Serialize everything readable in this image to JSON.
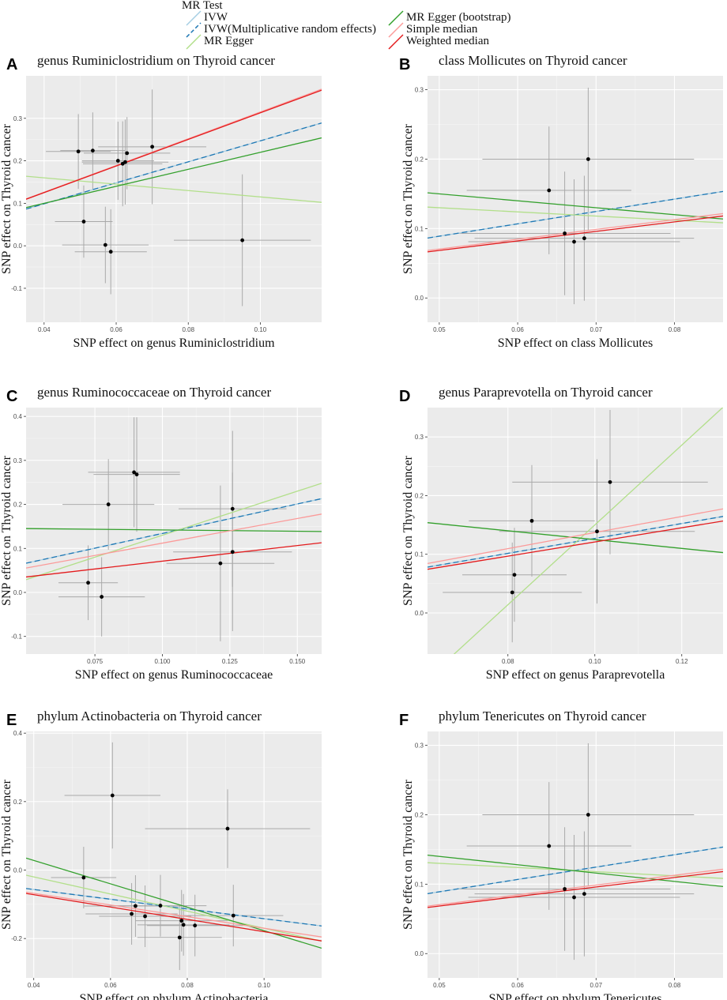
{
  "legend": {
    "title": "MR Test",
    "entries": [
      {
        "label": "IVW",
        "color": "#a6cee3",
        "dash": false
      },
      {
        "label": "IVW(Multiplicative random effects)",
        "color": "#1f78b4",
        "dash": true
      },
      {
        "label": "MR Egger",
        "color": "#b2df8a",
        "dash": false
      },
      {
        "label": "MR Egger (bootstrap)",
        "color": "#33a02c",
        "dash": false
      },
      {
        "label": "Simple median",
        "color": "#fb9a99",
        "dash": false
      },
      {
        "label": "Weighted median",
        "color": "#e31a1c",
        "dash": false
      }
    ]
  },
  "chart_data": [
    {
      "panel": "A",
      "type": "scatter",
      "title": "genus  Ruminiclostridium on Thyroid cancer",
      "xlabel": "SNP effect on genus  Ruminiclostridium",
      "ylabel": "SNP effect on Thyroid cancer",
      "xlim": [
        0.035,
        0.117
      ],
      "ylim": [
        -0.18,
        0.4
      ],
      "xticks": [
        0.04,
        0.06,
        0.08,
        0.1
      ],
      "xtick_labels": [
        "0.04",
        "0.06",
        "0.08",
        "0.10"
      ],
      "yticks": [
        -0.1,
        0.0,
        0.1,
        0.2,
        0.3
      ],
      "ytick_labels": [
        "-0.1",
        "0.0",
        "0.1",
        "0.2",
        "0.3"
      ],
      "points": [
        {
          "x": 0.0495,
          "y": 0.222,
          "xse": 0.009,
          "yse": 0.088
        },
        {
          "x": 0.0535,
          "y": 0.224,
          "xse": 0.009,
          "yse": 0.09
        },
        {
          "x": 0.0605,
          "y": 0.2,
          "xse": 0.01,
          "yse": 0.092
        },
        {
          "x": 0.0618,
          "y": 0.193,
          "xse": 0.011,
          "yse": 0.1
        },
        {
          "x": 0.0625,
          "y": 0.197,
          "xse": 0.012,
          "yse": 0.1
        },
        {
          "x": 0.063,
          "y": 0.218,
          "xse": 0.012,
          "yse": 0.085
        },
        {
          "x": 0.07,
          "y": 0.233,
          "xse": 0.015,
          "yse": 0.135
        },
        {
          "x": 0.051,
          "y": 0.057,
          "xse": 0.008,
          "yse": 0.085
        },
        {
          "x": 0.057,
          "y": 0.002,
          "xse": 0.012,
          "yse": 0.09
        },
        {
          "x": 0.0585,
          "y": -0.014,
          "xse": 0.01,
          "yse": 0.1
        },
        {
          "x": 0.095,
          "y": 0.013,
          "xse": 0.019,
          "yse": 0.155
        }
      ],
      "lines": [
        {
          "method": "IVW",
          "intercept": 0,
          "slope": 2.47
        },
        {
          "method": "IVW(Multiplicative random effects)",
          "intercept": 0,
          "slope": 2.47
        },
        {
          "method": "MR Egger",
          "intercept": 0.19,
          "slope": -0.75
        },
        {
          "method": "MR Egger (bootstrap)",
          "intercept": 0.02,
          "slope": 2.0
        },
        {
          "method": "Simple median",
          "intercept": 0.0,
          "slope": 3.15
        },
        {
          "method": "Weighted median",
          "intercept": 0.0,
          "slope": 3.13
        }
      ]
    },
    {
      "panel": "B",
      "type": "scatter",
      "title": "class Mollicutes on Thyroid cancer",
      "xlabel": "SNP effect on class Mollicutes",
      "ylabel": "SNP effect on Thyroid cancer",
      "xlim": [
        0.0485,
        0.0862
      ],
      "ylim": [
        -0.035,
        0.32
      ],
      "xticks": [
        0.05,
        0.06,
        0.07,
        0.08
      ],
      "xtick_labels": [
        "0.05",
        "0.06",
        "0.07",
        "0.08"
      ],
      "yticks": [
        0.0,
        0.1,
        0.2,
        0.3
      ],
      "ytick_labels": [
        "0.0",
        "0.1",
        "0.2",
        "0.3"
      ],
      "points": [
        {
          "x": 0.064,
          "y": 0.155,
          "xse": 0.0105,
          "yse": 0.092
        },
        {
          "x": 0.069,
          "y": 0.2,
          "xse": 0.0135,
          "yse": 0.103
        },
        {
          "x": 0.066,
          "y": 0.093,
          "xse": 0.0135,
          "yse": 0.089
        },
        {
          "x": 0.0672,
          "y": 0.081,
          "xse": 0.0135,
          "yse": 0.09
        },
        {
          "x": 0.0685,
          "y": 0.086,
          "xse": 0.014,
          "yse": 0.09
        }
      ],
      "lines": [
        {
          "method": "IVW",
          "intercept": 0,
          "slope": 1.78
        },
        {
          "method": "IVW(Multiplicative random effects)",
          "intercept": 0,
          "slope": 1.78
        },
        {
          "method": "MR Egger",
          "intercept": 0.16,
          "slope": -0.6
        },
        {
          "method": "MR Egger (bootstrap)",
          "intercept": 0.2,
          "slope": -1.0
        },
        {
          "method": "Simple median",
          "intercept": 0,
          "slope": 1.41
        },
        {
          "method": "Weighted median",
          "intercept": 0,
          "slope": 1.37
        }
      ]
    },
    {
      "panel": "C",
      "type": "scatter",
      "title": "genus Ruminococcaceae  on Thyroid cancer",
      "xlabel": "SNP effect on genus Ruminococcaceae",
      "ylabel": "SNP effect on Thyroid cancer",
      "xlim": [
        0.0495,
        0.159
      ],
      "ylim": [
        -0.14,
        0.42
      ],
      "xticks": [
        0.075,
        0.1,
        0.125,
        0.15
      ],
      "xtick_labels": [
        "0.075",
        "0.100",
        "0.125",
        "0.150"
      ],
      "yticks": [
        -0.1,
        0.0,
        0.1,
        0.2,
        0.3,
        0.4
      ],
      "ytick_labels": [
        "-0.1",
        "0.0",
        "0.1",
        "0.2",
        "0.3",
        "0.4"
      ],
      "points": [
        {
          "x": 0.0895,
          "y": 0.273,
          "xse": 0.017,
          "yse": 0.125
        },
        {
          "x": 0.0905,
          "y": 0.268,
          "xse": 0.016,
          "yse": 0.13
        },
        {
          "x": 0.08,
          "y": 0.2,
          "xse": 0.017,
          "yse": 0.103
        },
        {
          "x": 0.126,
          "y": 0.19,
          "xse": 0.02,
          "yse": 0.177
        },
        {
          "x": 0.126,
          "y": 0.092,
          "xse": 0.022,
          "yse": 0.18
        },
        {
          "x": 0.1215,
          "y": 0.066,
          "xse": 0.02,
          "yse": 0.177
        },
        {
          "x": 0.0725,
          "y": 0.022,
          "xse": 0.011,
          "yse": 0.085
        },
        {
          "x": 0.0775,
          "y": -0.01,
          "xse": 0.016,
          "yse": 0.09
        }
      ],
      "lines": [
        {
          "method": "IVW",
          "intercept": 0,
          "slope": 1.34
        },
        {
          "method": "IVW(Multiplicative random effects)",
          "intercept": 0,
          "slope": 1.34
        },
        {
          "method": "MR Egger",
          "intercept": -0.07,
          "slope": 2.0
        },
        {
          "method": "MR Egger (bootstrap)",
          "intercept": 0.148,
          "slope": -0.06
        },
        {
          "method": "Simple median",
          "intercept": 0,
          "slope": 1.12
        },
        {
          "method": "Weighted median",
          "intercept": 0,
          "slope": 0.71
        }
      ]
    },
    {
      "panel": "D",
      "type": "scatter",
      "title": "genus Paraprevotella on Thyroid cancer",
      "xlabel": "SNP effect on genus Paraprevotella",
      "ylabel": "SNP effect on Thyroid cancer",
      "xlim": [
        0.0615,
        0.1295
      ],
      "ylim": [
        -0.07,
        0.35
      ],
      "xticks": [
        0.08,
        0.1,
        0.12
      ],
      "xtick_labels": [
        "0.08",
        "0.10",
        "0.12"
      ],
      "yticks": [
        0.0,
        0.1,
        0.2,
        0.3
      ],
      "ytick_labels": [
        "0.0",
        "0.1",
        "0.2",
        "0.3"
      ],
      "points": [
        {
          "x": 0.0855,
          "y": 0.157,
          "xse": 0.0145,
          "yse": 0.095
        },
        {
          "x": 0.1035,
          "y": 0.223,
          "xse": 0.0225,
          "yse": 0.123
        },
        {
          "x": 0.1005,
          "y": 0.139,
          "xse": 0.0225,
          "yse": 0.123
        },
        {
          "x": 0.0815,
          "y": 0.065,
          "xse": 0.012,
          "yse": 0.08
        },
        {
          "x": 0.081,
          "y": 0.035,
          "xse": 0.016,
          "yse": 0.085
        }
      ],
      "lines": [
        {
          "method": "IVW",
          "intercept": 0,
          "slope": 1.27
        },
        {
          "method": "IVW(Multiplicative random effects)",
          "intercept": 0,
          "slope": 1.27
        },
        {
          "method": "MR Egger",
          "intercept": -0.53,
          "slope": 6.8
        },
        {
          "method": "MR Egger (bootstrap)",
          "intercept": 0.2,
          "slope": -0.75
        },
        {
          "method": "Simple median",
          "intercept": 0,
          "slope": 1.37
        },
        {
          "method": "Weighted median",
          "intercept": 0,
          "slope": 1.21
        }
      ]
    },
    {
      "panel": "E",
      "type": "scatter",
      "title": "phylum Actinobacteria on Thyroid cancer",
      "xlabel": "SNP effect on phylum Actinobacteria",
      "ylabel": "SNP effect on Thyroid cancer",
      "xlim": [
        0.038,
        0.115
      ],
      "ylim": [
        -0.315,
        0.405
      ],
      "xticks": [
        0.04,
        0.06,
        0.08,
        0.1
      ],
      "xtick_labels": [
        "0.04",
        "0.06",
        "0.08",
        "0.10"
      ],
      "yticks": [
        -0.2,
        0.0,
        0.2,
        0.4
      ],
      "ytick_labels": [
        "-0.2",
        "0.0",
        "0.2",
        "0.4"
      ],
      "points": [
        {
          "x": 0.0605,
          "y": 0.218,
          "xse": 0.0125,
          "yse": 0.155
        },
        {
          "x": 0.0905,
          "y": 0.121,
          "xse": 0.0215,
          "yse": 0.115
        },
        {
          "x": 0.053,
          "y": -0.022,
          "xse": 0.0085,
          "yse": 0.09
        },
        {
          "x": 0.0665,
          "y": -0.105,
          "xse": 0.0135,
          "yse": 0.09
        },
        {
          "x": 0.0655,
          "y": -0.128,
          "xse": 0.012,
          "yse": 0.09
        },
        {
          "x": 0.069,
          "y": -0.135,
          "xse": 0.012,
          "yse": 0.09
        },
        {
          "x": 0.073,
          "y": -0.104,
          "xse": 0.012,
          "yse": 0.09
        },
        {
          "x": 0.0785,
          "y": -0.148,
          "xse": 0.012,
          "yse": 0.09
        },
        {
          "x": 0.079,
          "y": -0.16,
          "xse": 0.012,
          "yse": 0.09
        },
        {
          "x": 0.082,
          "y": -0.162,
          "xse": 0.0125,
          "yse": 0.09
        },
        {
          "x": 0.078,
          "y": -0.197,
          "xse": 0.011,
          "yse": 0.095
        },
        {
          "x": 0.092,
          "y": -0.133,
          "xse": 0.013,
          "yse": 0.09
        }
      ],
      "lines": [
        {
          "method": "IVW",
          "intercept": 0,
          "slope": -1.42
        },
        {
          "method": "IVW(Multiplicative random effects)",
          "intercept": 0,
          "slope": -1.42
        },
        {
          "method": "MR Egger",
          "intercept": 0.08,
          "slope": -2.5
        },
        {
          "method": "MR Egger (bootstrap)",
          "intercept": 0.165,
          "slope": -3.42
        },
        {
          "method": "Simple median",
          "intercept": 0,
          "slope": -1.7
        },
        {
          "method": "Weighted median",
          "intercept": 0,
          "slope": -1.8
        }
      ]
    },
    {
      "panel": "F",
      "type": "scatter",
      "title": "phylum Tenericutes on Thyroid cancer",
      "xlabel": "SNP effect on phylum Tenericutes",
      "ylabel": "SNP effect on Thyroid cancer",
      "xlim": [
        0.0485,
        0.0862
      ],
      "ylim": [
        -0.035,
        0.32
      ],
      "xticks": [
        0.05,
        0.06,
        0.07,
        0.08
      ],
      "xtick_labels": [
        "0.05",
        "0.06",
        "0.07",
        "0.08"
      ],
      "yticks": [
        0.0,
        0.1,
        0.2,
        0.3
      ],
      "ytick_labels": [
        "0.0",
        "0.1",
        "0.2",
        "0.3"
      ],
      "points": [
        {
          "x": 0.064,
          "y": 0.155,
          "xse": 0.0105,
          "yse": 0.092
        },
        {
          "x": 0.069,
          "y": 0.2,
          "xse": 0.0135,
          "yse": 0.103
        },
        {
          "x": 0.066,
          "y": 0.093,
          "xse": 0.0135,
          "yse": 0.089
        },
        {
          "x": 0.0672,
          "y": 0.081,
          "xse": 0.0135,
          "yse": 0.09
        },
        {
          "x": 0.0685,
          "y": 0.086,
          "xse": 0.014,
          "yse": 0.09
        }
      ],
      "lines": [
        {
          "method": "IVW",
          "intercept": 0,
          "slope": 1.78
        },
        {
          "method": "IVW(Multiplicative random effects)",
          "intercept": 0,
          "slope": 1.78
        },
        {
          "method": "MR Egger",
          "intercept": 0.16,
          "slope": -0.6
        },
        {
          "method": "MR Egger (bootstrap)",
          "intercept": 0.2,
          "slope": -1.2
        },
        {
          "method": "Simple median",
          "intercept": 0,
          "slope": 1.41
        },
        {
          "method": "Weighted median",
          "intercept": 0,
          "slope": 1.37
        }
      ]
    }
  ]
}
